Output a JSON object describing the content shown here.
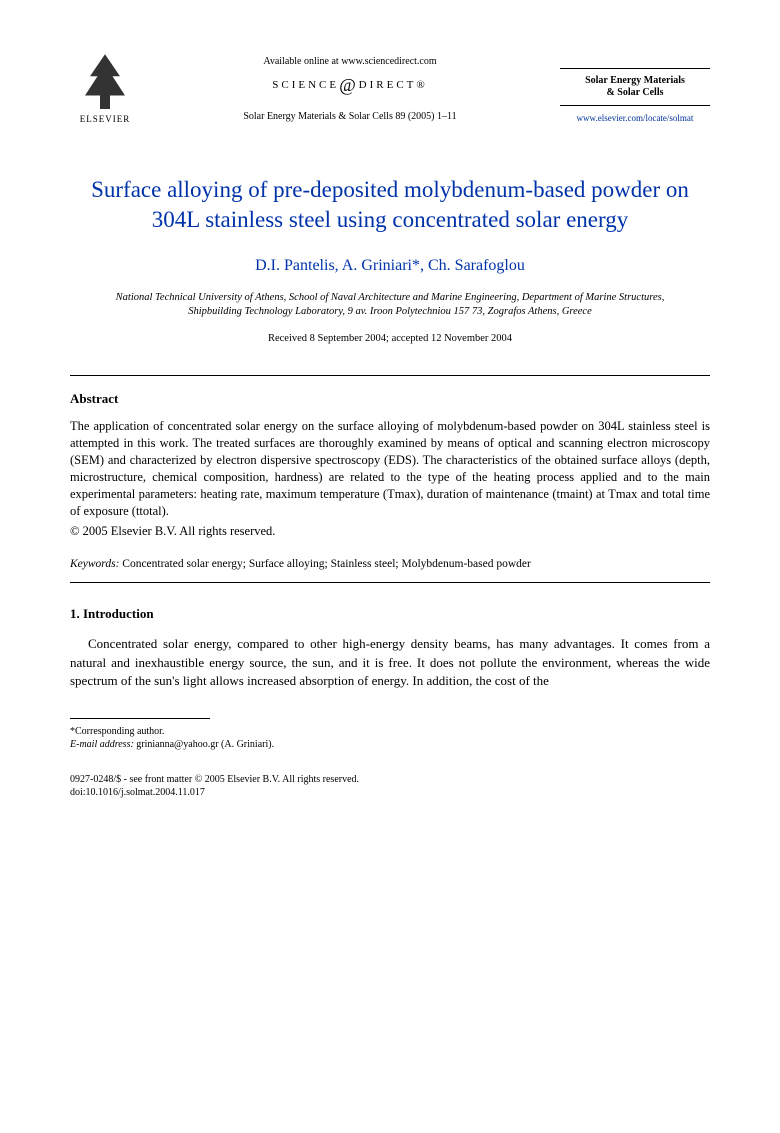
{
  "header": {
    "publisher_name": "ELSEVIER",
    "available_online": "Available online at www.sciencedirect.com",
    "science_direct": "SCIENCE",
    "direct_suffix": "DIRECT®",
    "journal_citation": "Solar Energy Materials & Solar Cells 89 (2005) 1–11",
    "journal_box_line1": "Solar Energy Materials",
    "journal_box_line2": "& Solar Cells",
    "journal_url": "www.elsevier.com/locate/solmat"
  },
  "title": "Surface alloying of pre-deposited molybdenum-based powder on 304L stainless steel using concentrated solar energy",
  "authors": "D.I. Pantelis, A. Griniari*, Ch. Sarafoglou",
  "affiliation": "National Technical University of Athens, School of Naval Architecture and Marine Engineering, Department of Marine Structures, Shipbuilding Technology Laboratory, 9 av. Iroon Polytechniou 157 73, Zografos Athens, Greece",
  "dates": "Received 8 September 2004; accepted 12 November 2004",
  "abstract": {
    "heading": "Abstract",
    "body": "The application of concentrated solar energy on the surface alloying of molybdenum-based powder on 304L stainless steel is attempted in this work. The treated surfaces are thoroughly examined by means of optical and scanning electron microscopy (SEM) and characterized by electron dispersive spectroscopy (EDS). The characteristics of the obtained surface alloys (depth, microstructure, chemical composition, hardness) are related to the type of the heating process applied and to the main experimental parameters: heating rate, maximum temperature (Tmax), duration of maintenance (tmaint) at Tmax and total time of exposure (ttotal).",
    "copyright": "© 2005 Elsevier B.V. All rights reserved."
  },
  "keywords": {
    "label": "Keywords:",
    "list": "Concentrated solar energy; Surface alloying; Stainless steel; Molybdenum-based powder"
  },
  "introduction": {
    "heading": "1. Introduction",
    "body": "Concentrated solar energy, compared to other high-energy density beams, has many advantages. It comes from a natural and inexhaustible energy source, the sun, and it is free. It does not pollute the environment, whereas the wide spectrum of the sun's light allows increased absorption of energy. In addition, the cost of the"
  },
  "footnote": {
    "corresponding": "*Corresponding author.",
    "email_label": "E-mail address:",
    "email": "grinianna@yahoo.gr (A. Griniari)."
  },
  "footer": {
    "line1": "0927-0248/$ - see front matter © 2005 Elsevier B.V. All rights reserved.",
    "line2": "doi:10.1016/j.solmat.2004.11.017"
  },
  "colors": {
    "title_color": "#0033aa",
    "text_color": "#000000",
    "url_color": "#003399",
    "background": "#ffffff"
  }
}
